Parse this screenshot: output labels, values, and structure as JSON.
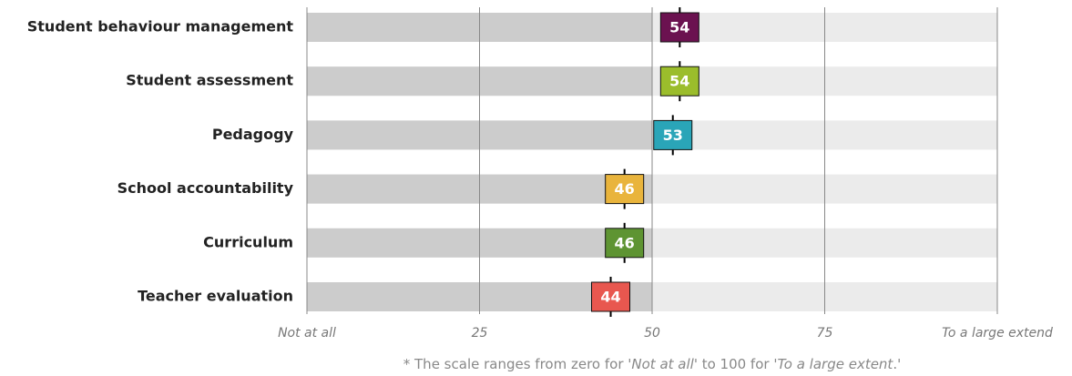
{
  "chart_data": {
    "type": "dot",
    "categories": [
      "Student behaviour management",
      "Student assessment",
      "Pedagogy",
      "School accountability",
      "Curriculum",
      "Teacher evaluation"
    ],
    "values": [
      54,
      54,
      53,
      46,
      46,
      44
    ],
    "colors": [
      "#6b1250",
      "#9bbd2c",
      "#2aa5b8",
      "#e9b43c",
      "#5e9432",
      "#e8574f"
    ],
    "xlim": [
      0,
      100
    ],
    "xticks": [
      {
        "value": 0,
        "label": "Not at all"
      },
      25,
      50,
      75,
      {
        "value": 100,
        "label": "To a large extend"
      }
    ],
    "grid": true,
    "footnote": [
      "* The scale ranges from zero for '",
      "Not at all",
      "' to 100 for '",
      "To a large extent",
      ".'"
    ]
  }
}
